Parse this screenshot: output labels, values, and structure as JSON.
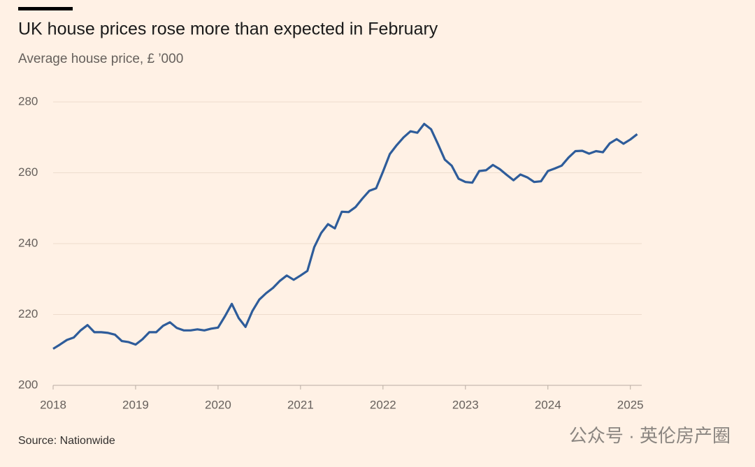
{
  "chart_data": {
    "type": "line",
    "title": "UK house prices rose more than expected in February",
    "subtitle": "Average house price, £ ’000",
    "source": "Source: Nationwide",
    "watermark": "公众号 · 英伦房产圈",
    "categories": [
      "2018",
      null,
      null,
      null,
      null,
      null,
      null,
      null,
      null,
      null,
      null,
      null,
      "2019",
      null,
      null,
      null,
      null,
      null,
      null,
      null,
      null,
      null,
      null,
      null,
      "2020",
      null,
      null,
      null,
      null,
      null,
      null,
      null,
      null,
      null,
      null,
      null,
      "2021",
      null,
      null,
      null,
      null,
      null,
      null,
      null,
      null,
      null,
      null,
      null,
      "2022",
      null,
      null,
      null,
      null,
      null,
      null,
      null,
      null,
      null,
      null,
      null,
      "2023",
      null,
      null,
      null,
      null,
      null,
      null,
      null,
      null,
      null,
      null,
      null,
      "2024",
      null,
      null,
      null,
      null,
      null,
      null,
      null,
      null,
      null,
      null,
      null,
      "2025",
      null
    ],
    "series": [
      {
        "name": "Average house price",
        "color": "#2e5c9a",
        "values": [
          210.3,
          211.5,
          212.8,
          213.5,
          215.5,
          217,
          215,
          215,
          214.8,
          214.3,
          212.5,
          212.2,
          211.5,
          213,
          215,
          215,
          216.8,
          217.8,
          216.2,
          215.5,
          215.5,
          215.8,
          215.5,
          216,
          216.3,
          219.5,
          223,
          219,
          216.5,
          221,
          224.2,
          226,
          227.5,
          229.5,
          231,
          229.8,
          231,
          232.3,
          239,
          243,
          245.5,
          244.3,
          249,
          248.9,
          250.3,
          252.7,
          254.9,
          255.6,
          260.3,
          265.3,
          267.8,
          270,
          271.7,
          271.3,
          273.8,
          272.3,
          268.1,
          263.7,
          262,
          258.3,
          257.4,
          257.2,
          260.5,
          260.7,
          262.2,
          261,
          259.4,
          257.9,
          259.5,
          258.7,
          257.4,
          257.6,
          260.5,
          261.2,
          262,
          264.3,
          266.1,
          266.2,
          265.4,
          266.1,
          265.8,
          268.3,
          269.5,
          268.2,
          269.4,
          270.9
        ]
      }
    ],
    "ylim": [
      200,
      280
    ],
    "yticks": [
      200,
      220,
      240,
      260,
      280
    ],
    "grid": true
  }
}
